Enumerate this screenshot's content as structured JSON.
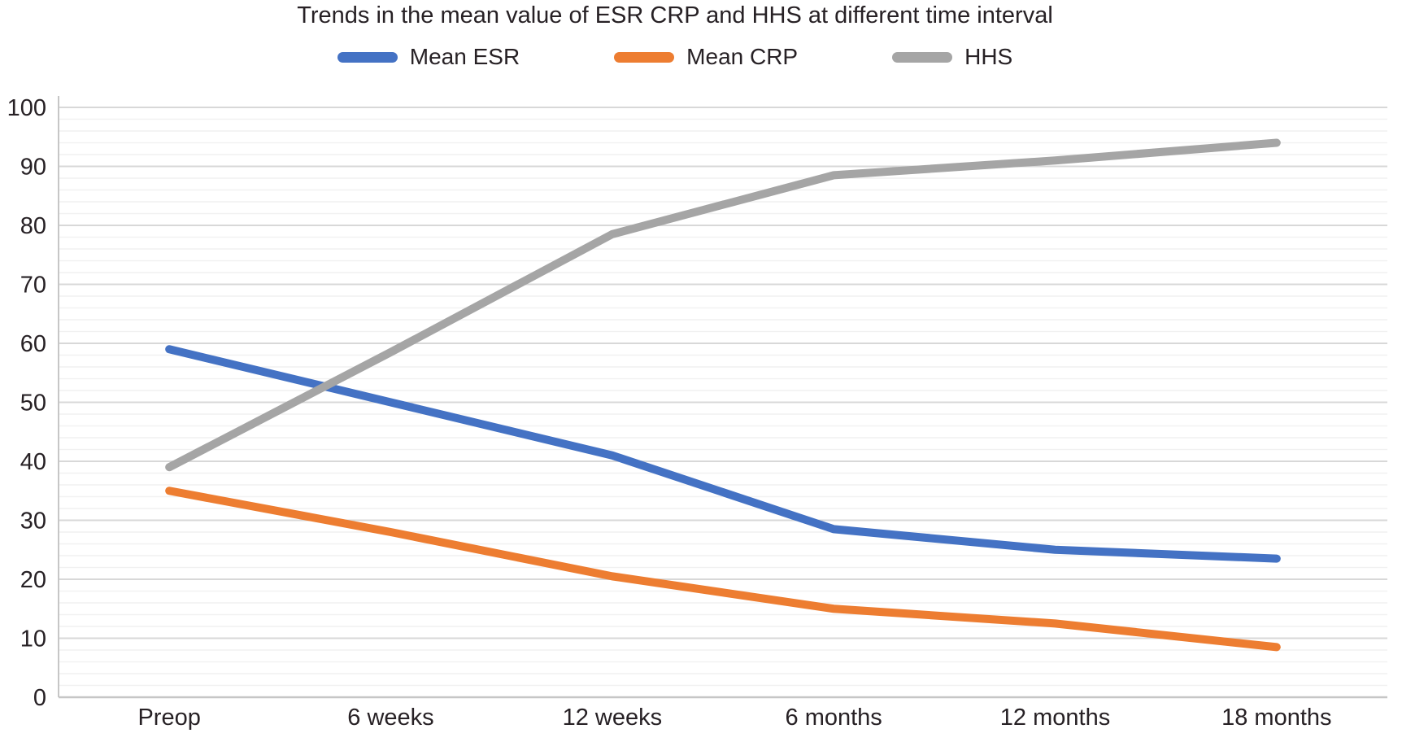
{
  "chart_data": {
    "type": "line",
    "title": "Trends in the mean value of ESR CRP and HHS at different time interval",
    "categories": [
      "Preop",
      "6 weeks",
      "12 weeks",
      "6 months",
      "12 months",
      "18 months"
    ],
    "series": [
      {
        "name": "Mean ESR",
        "color": "#4472C4",
        "values": [
          59,
          50,
          41,
          28.5,
          25,
          23.5
        ]
      },
      {
        "name": "Mean CRP",
        "color": "#ED7D31",
        "values": [
          35,
          28,
          20.5,
          15,
          12.5,
          8.5
        ]
      },
      {
        "name": "HHS",
        "color": "#A5A5A5",
        "values": [
          39,
          58.5,
          78.5,
          88.5,
          91,
          94
        ]
      }
    ],
    "xlabel": "",
    "ylabel": "",
    "ylim": [
      0,
      100
    ],
    "y_tick_step": 10,
    "y_minor_step": 2,
    "y_tick_labels": [
      "0",
      "10",
      "20",
      "30",
      "40",
      "50",
      "60",
      "70",
      "80",
      "90",
      "100"
    ],
    "grid": "horizontal-major-and-minor",
    "legend_position": "top",
    "colors": {
      "grid_major": "#d8d8d8",
      "grid_minor": "#f1f1f1",
      "axis": "#c6c6c6",
      "text": "#272125"
    }
  }
}
